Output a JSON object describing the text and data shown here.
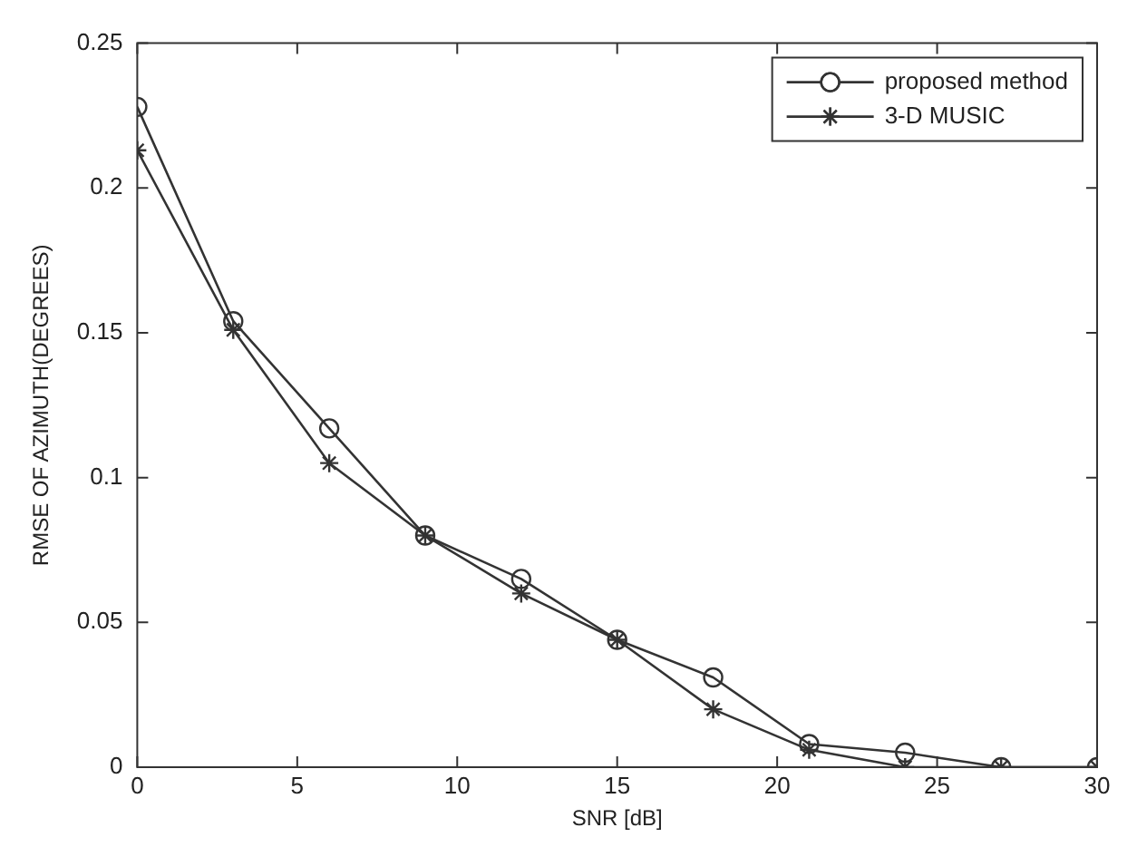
{
  "chart_data": {
    "type": "line",
    "xlabel": "SNR [dB]",
    "ylabel": "RMSE OF AZIMUTH(DEGREES)",
    "x": [
      0,
      3,
      6,
      9,
      12,
      15,
      18,
      21,
      24,
      27,
      30
    ],
    "series": [
      {
        "name": "proposed method",
        "color": "#333333",
        "marker": "circle",
        "values": [
          0.228,
          0.154,
          0.117,
          0.08,
          0.065,
          0.044,
          0.031,
          0.008,
          0.005,
          0,
          0
        ]
      },
      {
        "name": "3-D MUSIC",
        "color": "#333333",
        "marker": "cross",
        "values": [
          0.213,
          0.151,
          0.105,
          0.08,
          0.06,
          0.044,
          0.02,
          0.006,
          0,
          0,
          0
        ]
      }
    ],
    "xlim": [
      0,
      30
    ],
    "xticks": [
      0,
      5,
      10,
      15,
      20,
      25,
      30
    ],
    "ylim": [
      0,
      0.25
    ],
    "yticks": [
      0,
      0.05,
      0.1,
      0.15,
      0.2,
      0.25
    ],
    "grid": false,
    "legend": "top right",
    "line_style": "solid"
  }
}
